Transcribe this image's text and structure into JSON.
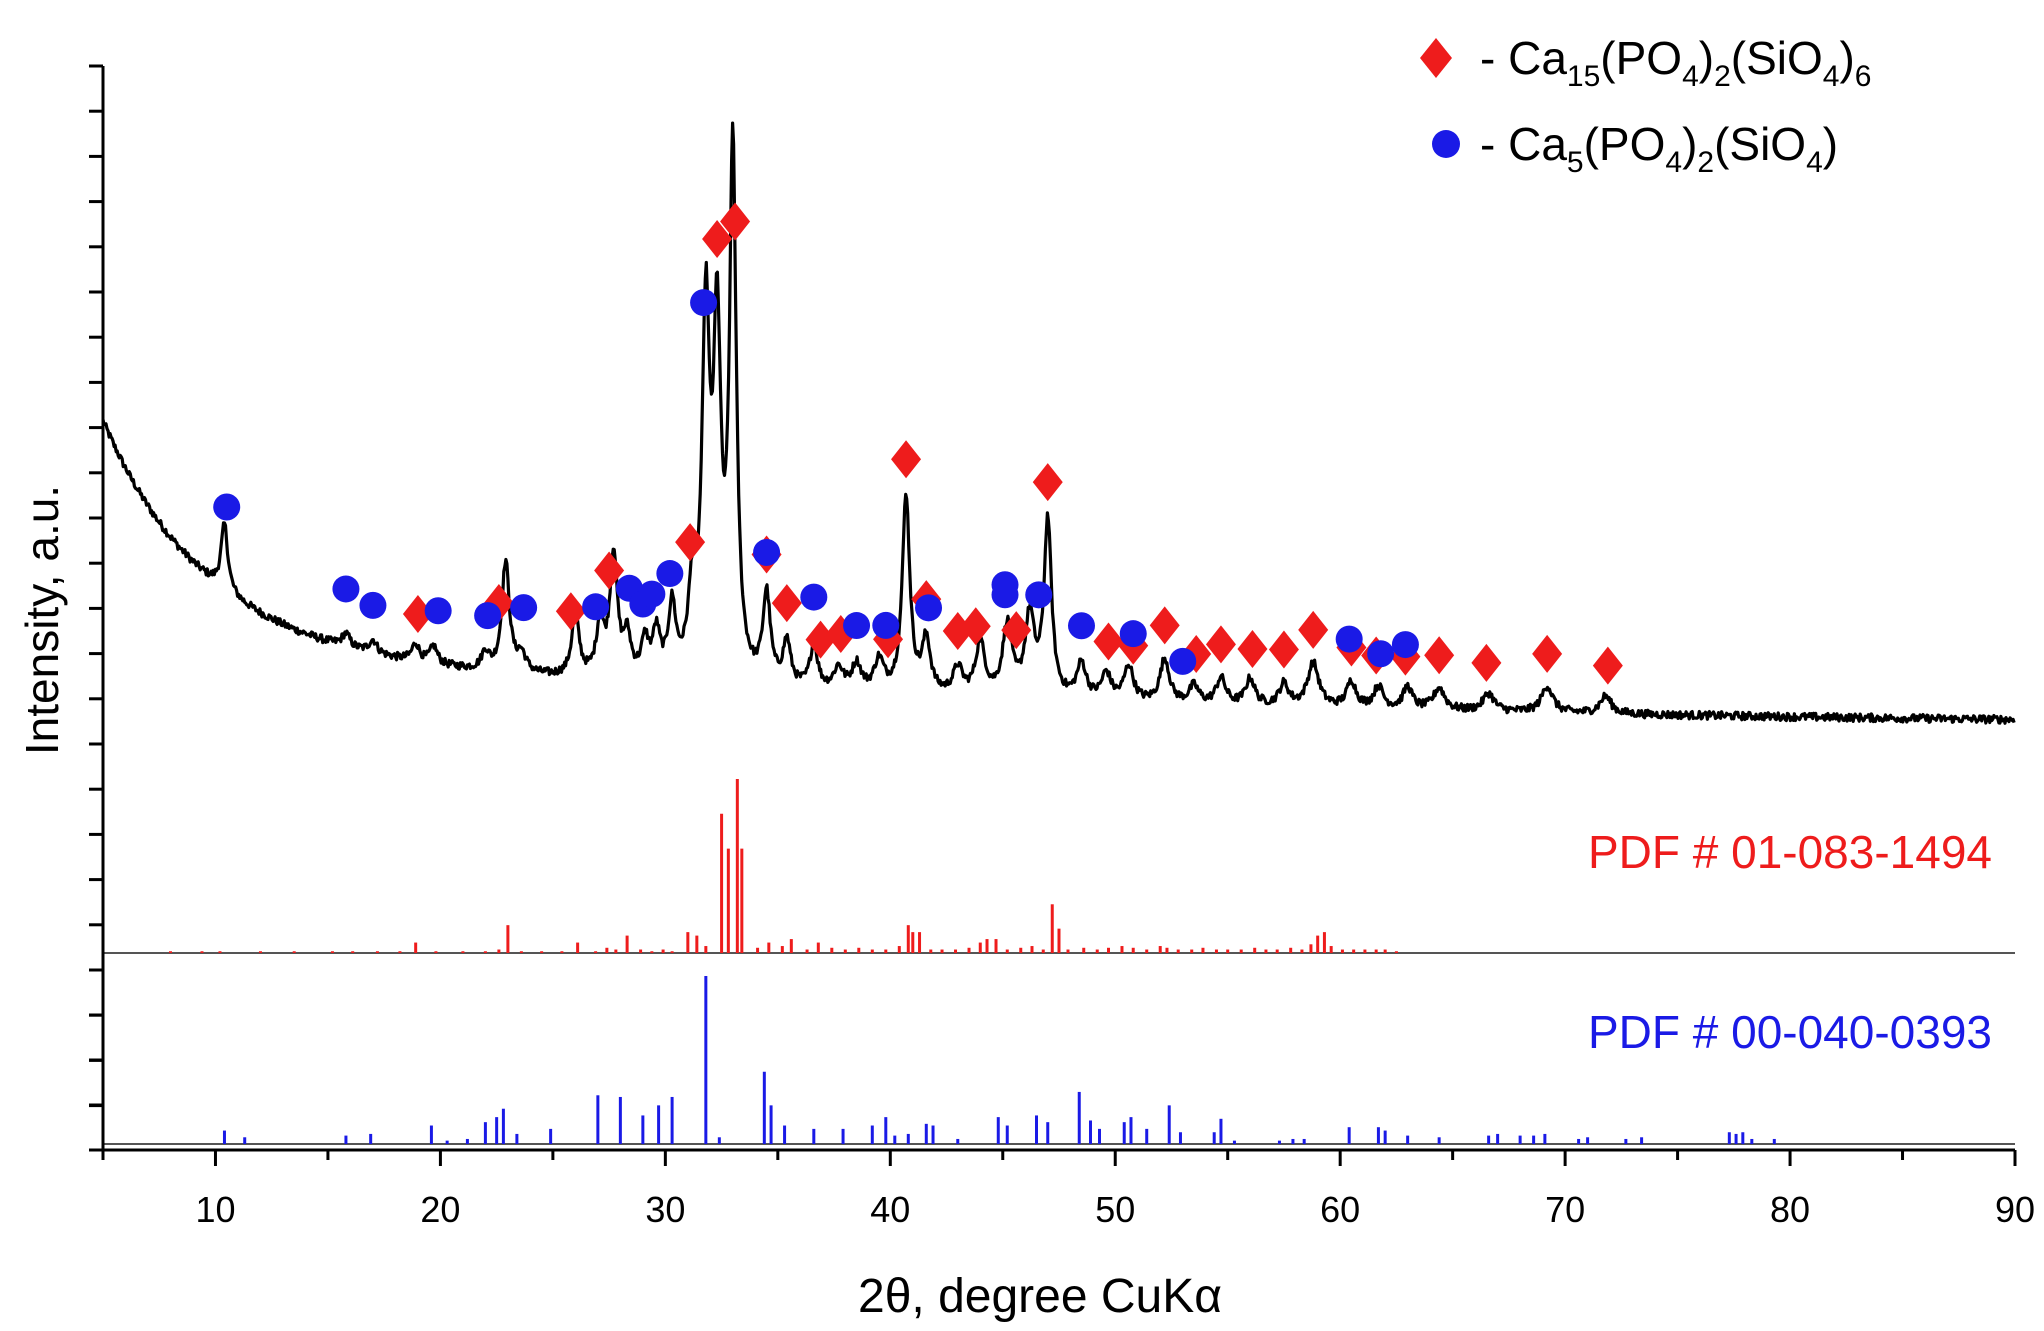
{
  "chart_data": {
    "type": "line",
    "title": "",
    "xlabel": "2θ, degree CuKα",
    "ylabel": "Intensity, a.u.",
    "xlim": [
      5,
      90
    ],
    "x_ticks": [
      "10",
      "20",
      "30",
      "40",
      "50",
      "60",
      "70",
      "80",
      "90"
    ],
    "x_tick_values": [
      10,
      20,
      30,
      40,
      50,
      60,
      70,
      80,
      90
    ],
    "legend": {
      "position": "top-right",
      "entries": [
        {
          "marker": "diamond",
          "color": "#ee1c1c",
          "label": "- Ca15(PO4)2(SiO4)6",
          "formula": {
            "prefix": "- Ca",
            "s1": "15",
            "p1": "(PO",
            "s2": "4",
            "p2": ")",
            "s3": "2",
            "p3": "(SiO",
            "s4": "4",
            "p4": ")",
            "s5": "6"
          }
        },
        {
          "marker": "circle",
          "color": "#1a1ae6",
          "label": "- Ca5(PO4)2(SiO4)",
          "formula": {
            "prefix": "- Ca",
            "s1": "5",
            "p1": "(PO",
            "s2": "4",
            "p2": ")",
            "s3": "2",
            "p3": "(SiO",
            "s4": "4",
            "p4": ")",
            "s5": ""
          }
        }
      ]
    },
    "pattern": {
      "name": "measured XRD pattern",
      "color": "#000000",
      "background": {
        "a": 52,
        "b": 18,
        "k": 0.22
      },
      "baseline_noise": 0.9,
      "peaks": [
        [
          10.4,
          15,
          0.18
        ],
        [
          15.8,
          3,
          0.22
        ],
        [
          17.0,
          3,
          0.22
        ],
        [
          18.9,
          4,
          0.2
        ],
        [
          19.7,
          4,
          0.2
        ],
        [
          22.0,
          4,
          0.2
        ],
        [
          22.9,
          25,
          0.2
        ],
        [
          23.6,
          4,
          0.25
        ],
        [
          26.0,
          14,
          0.2
        ],
        [
          27.1,
          12,
          0.2
        ],
        [
          27.7,
          28,
          0.2
        ],
        [
          28.3,
          9,
          0.2
        ],
        [
          29.1,
          8,
          0.2
        ],
        [
          29.6,
          10,
          0.2
        ],
        [
          30.3,
          16,
          0.2
        ],
        [
          31.2,
          18,
          0.22
        ],
        [
          31.8,
          80,
          0.2
        ],
        [
          32.3,
          75,
          0.2
        ],
        [
          33.0,
          120,
          0.18
        ],
        [
          34.5,
          20,
          0.2
        ],
        [
          35.4,
          10,
          0.2
        ],
        [
          36.6,
          10,
          0.2
        ],
        [
          37.7,
          5,
          0.25
        ],
        [
          38.5,
          6,
          0.25
        ],
        [
          39.5,
          7,
          0.25
        ],
        [
          40.7,
          45,
          0.2
        ],
        [
          41.6,
          12,
          0.22
        ],
        [
          43.0,
          6,
          0.25
        ],
        [
          44.0,
          12,
          0.25
        ],
        [
          45.2,
          16,
          0.25
        ],
        [
          46.2,
          18,
          0.25
        ],
        [
          47.0,
          40,
          0.2
        ],
        [
          48.5,
          8,
          0.25
        ],
        [
          49.6,
          6,
          0.25
        ],
        [
          50.6,
          8,
          0.25
        ],
        [
          52.2,
          10,
          0.25
        ],
        [
          53.5,
          4,
          0.25
        ],
        [
          54.7,
          6,
          0.25
        ],
        [
          56.0,
          6,
          0.25
        ],
        [
          57.5,
          5,
          0.25
        ],
        [
          58.8,
          10,
          0.3
        ],
        [
          60.5,
          6,
          0.25
        ],
        [
          61.7,
          5,
          0.25
        ],
        [
          63.0,
          5,
          0.25
        ],
        [
          64.4,
          5,
          0.3
        ],
        [
          66.6,
          4,
          0.3
        ],
        [
          69.2,
          6,
          0.3
        ],
        [
          71.8,
          4,
          0.3
        ]
      ]
    },
    "markers": {
      "diamonds": [
        19,
        22.6,
        25.8,
        27.5,
        31.1,
        32.3,
        33.1,
        34.5,
        35.4,
        36.9,
        37.8,
        39.9,
        40.7,
        41.6,
        43.0,
        43.8,
        45.6,
        47.0,
        49.7,
        50.8,
        52.2,
        53.6,
        54.7,
        56.1,
        57.5,
        58.8,
        60.5,
        61.6,
        62.9,
        64.4,
        66.5,
        69.2,
        71.9
      ],
      "circles": [
        10.5,
        15.8,
        17.0,
        19.9,
        22.1,
        23.7,
        26.9,
        28.4,
        29.0,
        29.4,
        30.2,
        31.7,
        34.5,
        36.6,
        38.5,
        39.8,
        41.7,
        45.1,
        45.1,
        46.6,
        48.5,
        50.8,
        53.0,
        60.4,
        61.8,
        62.9
      ]
    },
    "references": [
      {
        "label": "PDF # 01-083-1494",
        "color": "#ee1c1c",
        "lines": [
          [
            8.0,
            1
          ],
          [
            9.4,
            1
          ],
          [
            10.2,
            1
          ],
          [
            12.0,
            1
          ],
          [
            13.5,
            1
          ],
          [
            15.2,
            1
          ],
          [
            16.1,
            1
          ],
          [
            17.2,
            1
          ],
          [
            18.2,
            1
          ],
          [
            18.9,
            6
          ],
          [
            19.8,
            1
          ],
          [
            21.0,
            1
          ],
          [
            22.0,
            1
          ],
          [
            22.6,
            2
          ],
          [
            23.0,
            16
          ],
          [
            23.6,
            1
          ],
          [
            24.5,
            1
          ],
          [
            25.4,
            1
          ],
          [
            26.1,
            6
          ],
          [
            26.9,
            1
          ],
          [
            27.4,
            3
          ],
          [
            27.8,
            2
          ],
          [
            28.3,
            10
          ],
          [
            28.9,
            2
          ],
          [
            29.4,
            1
          ],
          [
            29.9,
            2
          ],
          [
            30.3,
            1
          ],
          [
            31.0,
            12
          ],
          [
            31.4,
            10
          ],
          [
            31.8,
            4
          ],
          [
            32.5,
            80
          ],
          [
            32.8,
            60
          ],
          [
            33.2,
            100
          ],
          [
            33.4,
            60
          ],
          [
            34.1,
            3
          ],
          [
            34.6,
            6
          ],
          [
            35.2,
            4
          ],
          [
            35.6,
            8
          ],
          [
            36.3,
            2
          ],
          [
            36.8,
            6
          ],
          [
            37.4,
            3
          ],
          [
            38.0,
            2
          ],
          [
            38.6,
            3
          ],
          [
            39.2,
            2
          ],
          [
            39.8,
            2
          ],
          [
            40.4,
            4
          ],
          [
            40.8,
            16
          ],
          [
            41.0,
            12
          ],
          [
            41.3,
            12
          ],
          [
            41.8,
            2
          ],
          [
            42.3,
            2
          ],
          [
            42.9,
            2
          ],
          [
            43.5,
            3
          ],
          [
            44.0,
            6
          ],
          [
            44.3,
            8
          ],
          [
            44.7,
            8
          ],
          [
            45.2,
            2
          ],
          [
            45.8,
            3
          ],
          [
            46.3,
            4
          ],
          [
            46.8,
            2
          ],
          [
            47.2,
            28
          ],
          [
            47.5,
            14
          ],
          [
            47.9,
            2
          ],
          [
            48.6,
            3
          ],
          [
            49.2,
            2
          ],
          [
            49.7,
            3
          ],
          [
            50.3,
            4
          ],
          [
            50.8,
            3
          ],
          [
            51.4,
            2
          ],
          [
            52.0,
            4
          ],
          [
            52.3,
            3
          ],
          [
            52.8,
            2
          ],
          [
            53.4,
            2
          ],
          [
            53.9,
            3
          ],
          [
            54.5,
            2
          ],
          [
            55.0,
            2
          ],
          [
            55.6,
            2
          ],
          [
            56.2,
            3
          ],
          [
            56.7,
            2
          ],
          [
            57.2,
            2
          ],
          [
            57.8,
            3
          ],
          [
            58.3,
            2
          ],
          [
            58.7,
            5
          ],
          [
            59.0,
            10
          ],
          [
            59.3,
            12
          ],
          [
            59.6,
            4
          ],
          [
            60.1,
            2
          ],
          [
            60.6,
            2
          ],
          [
            61.1,
            2
          ],
          [
            61.6,
            2
          ],
          [
            62.0,
            2
          ],
          [
            62.5,
            1
          ]
        ]
      },
      {
        "label": "PDF # 00-040-0393",
        "color": "#1a1ae6",
        "lines": [
          [
            10.4,
            8
          ],
          [
            11.3,
            4
          ],
          [
            15.8,
            5
          ],
          [
            16.9,
            6
          ],
          [
            19.6,
            11
          ],
          [
            20.3,
            2
          ],
          [
            21.2,
            3
          ],
          [
            22.0,
            13
          ],
          [
            22.5,
            16
          ],
          [
            22.8,
            21
          ],
          [
            23.4,
            6
          ],
          [
            24.9,
            9
          ],
          [
            27.0,
            29
          ],
          [
            28.0,
            28
          ],
          [
            29.0,
            17
          ],
          [
            29.7,
            23
          ],
          [
            30.3,
            28
          ],
          [
            31.8,
            100
          ],
          [
            32.4,
            4
          ],
          [
            34.4,
            43
          ],
          [
            34.7,
            23
          ],
          [
            35.3,
            11
          ],
          [
            36.6,
            9
          ],
          [
            37.9,
            9
          ],
          [
            39.2,
            11
          ],
          [
            39.8,
            16
          ],
          [
            40.2,
            5
          ],
          [
            40.8,
            6
          ],
          [
            41.6,
            12
          ],
          [
            41.9,
            11
          ],
          [
            43.0,
            3
          ],
          [
            44.8,
            16
          ],
          [
            45.2,
            11
          ],
          [
            46.5,
            17
          ],
          [
            47.0,
            13
          ],
          [
            48.4,
            31
          ],
          [
            48.9,
            14
          ],
          [
            49.3,
            9
          ],
          [
            50.4,
            13
          ],
          [
            50.7,
            16
          ],
          [
            51.4,
            9
          ],
          [
            52.4,
            23
          ],
          [
            52.9,
            7
          ],
          [
            54.4,
            7
          ],
          [
            54.7,
            15
          ],
          [
            55.3,
            2
          ],
          [
            57.3,
            2
          ],
          [
            57.9,
            3
          ],
          [
            58.4,
            3
          ],
          [
            60.4,
            10
          ],
          [
            61.7,
            10
          ],
          [
            62.0,
            8
          ],
          [
            63.0,
            5
          ],
          [
            64.4,
            4
          ],
          [
            66.6,
            5
          ],
          [
            67.0,
            6
          ],
          [
            68.0,
            5
          ],
          [
            68.6,
            5
          ],
          [
            69.1,
            6
          ],
          [
            70.6,
            3
          ],
          [
            71.0,
            4
          ],
          [
            72.7,
            3
          ],
          [
            73.4,
            4
          ],
          [
            77.3,
            7
          ],
          [
            77.6,
            6
          ],
          [
            77.9,
            7
          ],
          [
            78.3,
            3
          ],
          [
            79.3,
            3
          ]
        ]
      }
    ]
  }
}
